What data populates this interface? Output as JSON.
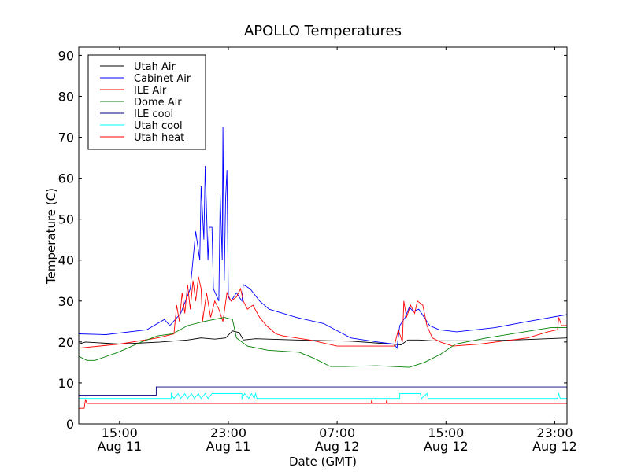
{
  "chart_data": {
    "type": "line",
    "title": "APOLLO Temperatures",
    "xlabel": "Date (GMT)",
    "ylabel": "Temperature (C)",
    "x_unit": "hours since Aug 11 12:00 GMT",
    "xlim": [
      0,
      35.9
    ],
    "ylim": [
      0,
      92
    ],
    "yticks": [
      0,
      10,
      20,
      30,
      40,
      50,
      60,
      70,
      80,
      90
    ],
    "xticks": [
      {
        "x": 3,
        "line1": "15:00",
        "line2": "Aug 11"
      },
      {
        "x": 11,
        "line1": "23:00",
        "line2": "Aug 11"
      },
      {
        "x": 19,
        "line1": "07:00",
        "line2": "Aug 12"
      },
      {
        "x": 27,
        "line1": "15:00",
        "line2": "Aug 12"
      },
      {
        "x": 35,
        "line1": "23:00",
        "line2": "Aug 12"
      }
    ],
    "legend_position": "top-left",
    "grid": false,
    "series": [
      {
        "name": "Utah Air",
        "color": "#000000",
        "points": [
          [
            0,
            19.5
          ],
          [
            0.5,
            20
          ],
          [
            3,
            19.5
          ],
          [
            6,
            20
          ],
          [
            8,
            20.5
          ],
          [
            9,
            21
          ],
          [
            10,
            20.7
          ],
          [
            10.8,
            21
          ],
          [
            11.3,
            22.7
          ],
          [
            11.8,
            22.3
          ],
          [
            12.1,
            20.5
          ],
          [
            13,
            20.8
          ],
          [
            16,
            20.5
          ],
          [
            20,
            20.2
          ],
          [
            23,
            19.5
          ],
          [
            23.7,
            19.3
          ],
          [
            24.2,
            20.5
          ],
          [
            25,
            20.5
          ],
          [
            26,
            20.3
          ],
          [
            30,
            20.3
          ],
          [
            33,
            20.6
          ],
          [
            35.9,
            21
          ]
        ]
      },
      {
        "name": "Cabinet Air",
        "color": "#0000ff",
        "points": [
          [
            0,
            22
          ],
          [
            2,
            21.8
          ],
          [
            5,
            23
          ],
          [
            6.3,
            25.5
          ],
          [
            6.7,
            24
          ],
          [
            7.5,
            27
          ],
          [
            8.2,
            33
          ],
          [
            8.6,
            47
          ],
          [
            8.9,
            40
          ],
          [
            9.0,
            58
          ],
          [
            9.2,
            45
          ],
          [
            9.3,
            63
          ],
          [
            9.5,
            40
          ],
          [
            9.6,
            48
          ],
          [
            9.8,
            48
          ],
          [
            9.9,
            33
          ],
          [
            10.3,
            30
          ],
          [
            10.4,
            56
          ],
          [
            10.55,
            40
          ],
          [
            10.6,
            72.5
          ],
          [
            10.7,
            35
          ],
          [
            10.8,
            55
          ],
          [
            10.9,
            62
          ],
          [
            11.0,
            31
          ],
          [
            11.2,
            30
          ],
          [
            11.6,
            32
          ],
          [
            12.0,
            30
          ],
          [
            12.1,
            34
          ],
          [
            12.6,
            33
          ],
          [
            13.3,
            30
          ],
          [
            14.0,
            28
          ],
          [
            16,
            26
          ],
          [
            18,
            24.5
          ],
          [
            20,
            21
          ],
          [
            22,
            20
          ],
          [
            23.2,
            19.5
          ],
          [
            23.4,
            18.5
          ],
          [
            23.6,
            24
          ],
          [
            24,
            26
          ],
          [
            24.3,
            28.5
          ],
          [
            24.6,
            27.5
          ],
          [
            25,
            28
          ],
          [
            25.8,
            24
          ],
          [
            26.5,
            23
          ],
          [
            27.8,
            22.5
          ],
          [
            30.6,
            23.5
          ],
          [
            33,
            25
          ],
          [
            35.9,
            26.7
          ]
        ]
      },
      {
        "name": "ILE Air",
        "color": "#ff0000",
        "points": [
          [
            0,
            18.5
          ],
          [
            3,
            19.5
          ],
          [
            5.8,
            21
          ],
          [
            7,
            22
          ],
          [
            7.2,
            29
          ],
          [
            7.4,
            25
          ],
          [
            7.6,
            32
          ],
          [
            7.8,
            27
          ],
          [
            8.0,
            34
          ],
          [
            8.2,
            28
          ],
          [
            8.4,
            35
          ],
          [
            8.6,
            30
          ],
          [
            8.8,
            36
          ],
          [
            9.0,
            33
          ],
          [
            9.1,
            25
          ],
          [
            9.4,
            32
          ],
          [
            9.7,
            26
          ],
          [
            10.0,
            30
          ],
          [
            10.3,
            28
          ],
          [
            10.6,
            25
          ],
          [
            10.9,
            32
          ],
          [
            11.2,
            30
          ],
          [
            11.6,
            31
          ],
          [
            11.9,
            33
          ],
          [
            12.1,
            30
          ],
          [
            12.4,
            28
          ],
          [
            12.8,
            29
          ],
          [
            13.3,
            26
          ],
          [
            13.8,
            24
          ],
          [
            14.5,
            22
          ],
          [
            15,
            21.5
          ],
          [
            17,
            20.5
          ],
          [
            19,
            19
          ],
          [
            22,
            19
          ],
          [
            23.2,
            19
          ],
          [
            23.5,
            23
          ],
          [
            23.8,
            20
          ],
          [
            23.9,
            30
          ],
          [
            24.1,
            26
          ],
          [
            24.4,
            29
          ],
          [
            24.7,
            27
          ],
          [
            24.9,
            30
          ],
          [
            25.3,
            29
          ],
          [
            25.6,
            24
          ],
          [
            26,
            21
          ],
          [
            26.6,
            20
          ],
          [
            27.5,
            19
          ],
          [
            29.5,
            19.5
          ],
          [
            33,
            21
          ],
          [
            34.5,
            22.5
          ],
          [
            35.2,
            23
          ],
          [
            35.3,
            26
          ],
          [
            35.5,
            24
          ],
          [
            35.9,
            24
          ]
        ]
      },
      {
        "name": "Dome Air",
        "color": "#008000",
        "points": [
          [
            0,
            16.5
          ],
          [
            0.6,
            15.5
          ],
          [
            1.2,
            15.5
          ],
          [
            2.9,
            17.5
          ],
          [
            4.6,
            20
          ],
          [
            5.8,
            21.5
          ],
          [
            6.9,
            22
          ],
          [
            8,
            24
          ],
          [
            9.2,
            25
          ],
          [
            10.7,
            26
          ],
          [
            11.3,
            25.5
          ],
          [
            11.6,
            21
          ],
          [
            12.4,
            19
          ],
          [
            13.9,
            18
          ],
          [
            16.2,
            17.5
          ],
          [
            17.3,
            16
          ],
          [
            18.5,
            14
          ],
          [
            19.6,
            14
          ],
          [
            21.9,
            14.2
          ],
          [
            23.1,
            14
          ],
          [
            24.3,
            13.8
          ],
          [
            25.4,
            15
          ],
          [
            26.6,
            17
          ],
          [
            27.7,
            19.5
          ],
          [
            30,
            21
          ],
          [
            34.7,
            23.5
          ],
          [
            35.9,
            23.5
          ]
        ]
      },
      {
        "name": "ILE cool",
        "color": "#00007f",
        "points": [
          [
            0,
            7
          ],
          [
            5.7,
            7
          ],
          [
            5.7,
            9
          ],
          [
            35.9,
            9
          ]
        ]
      },
      {
        "name": "Utah cool",
        "color": "#00ffff",
        "points": [
          [
            0,
            6.2
          ],
          [
            6.8,
            6.2
          ],
          [
            6.8,
            7.4
          ],
          [
            7,
            6.2
          ],
          [
            7.3,
            7.4
          ],
          [
            7.5,
            6.2
          ],
          [
            7.8,
            7.4
          ],
          [
            8,
            6.2
          ],
          [
            8.3,
            7.4
          ],
          [
            8.5,
            6.2
          ],
          [
            8.8,
            7.4
          ],
          [
            9,
            6.2
          ],
          [
            9.3,
            7.4
          ],
          [
            9.5,
            6.2
          ],
          [
            9.8,
            7.4
          ],
          [
            10.3,
            7.4
          ],
          [
            10.3,
            7.4
          ],
          [
            12,
            7.4
          ],
          [
            12,
            6.2
          ],
          [
            12.2,
            7.4
          ],
          [
            12.5,
            6.2
          ],
          [
            12.7,
            7.4
          ],
          [
            12.9,
            6.2
          ],
          [
            13.0,
            7.4
          ],
          [
            13.1,
            6.2
          ],
          [
            23.6,
            6.2
          ],
          [
            23.6,
            7.4
          ],
          [
            25.1,
            7.4
          ],
          [
            25.2,
            6.2
          ],
          [
            25.6,
            7.4
          ],
          [
            25.7,
            6.2
          ],
          [
            35.2,
            6.2
          ],
          [
            35.3,
            7.4
          ],
          [
            35.4,
            6.2
          ],
          [
            35.9,
            6.2
          ]
        ]
      },
      {
        "name": "Utah heat",
        "color": "#ff0000",
        "points": [
          [
            0,
            3.8
          ],
          [
            0.4,
            3.8
          ],
          [
            0.5,
            6
          ],
          [
            0.6,
            5
          ],
          [
            21.5,
            5
          ],
          [
            21.55,
            6
          ],
          [
            21.6,
            5
          ],
          [
            22.6,
            5
          ],
          [
            22.65,
            6
          ],
          [
            22.7,
            5
          ],
          [
            35.9,
            5
          ]
        ]
      }
    ]
  }
}
